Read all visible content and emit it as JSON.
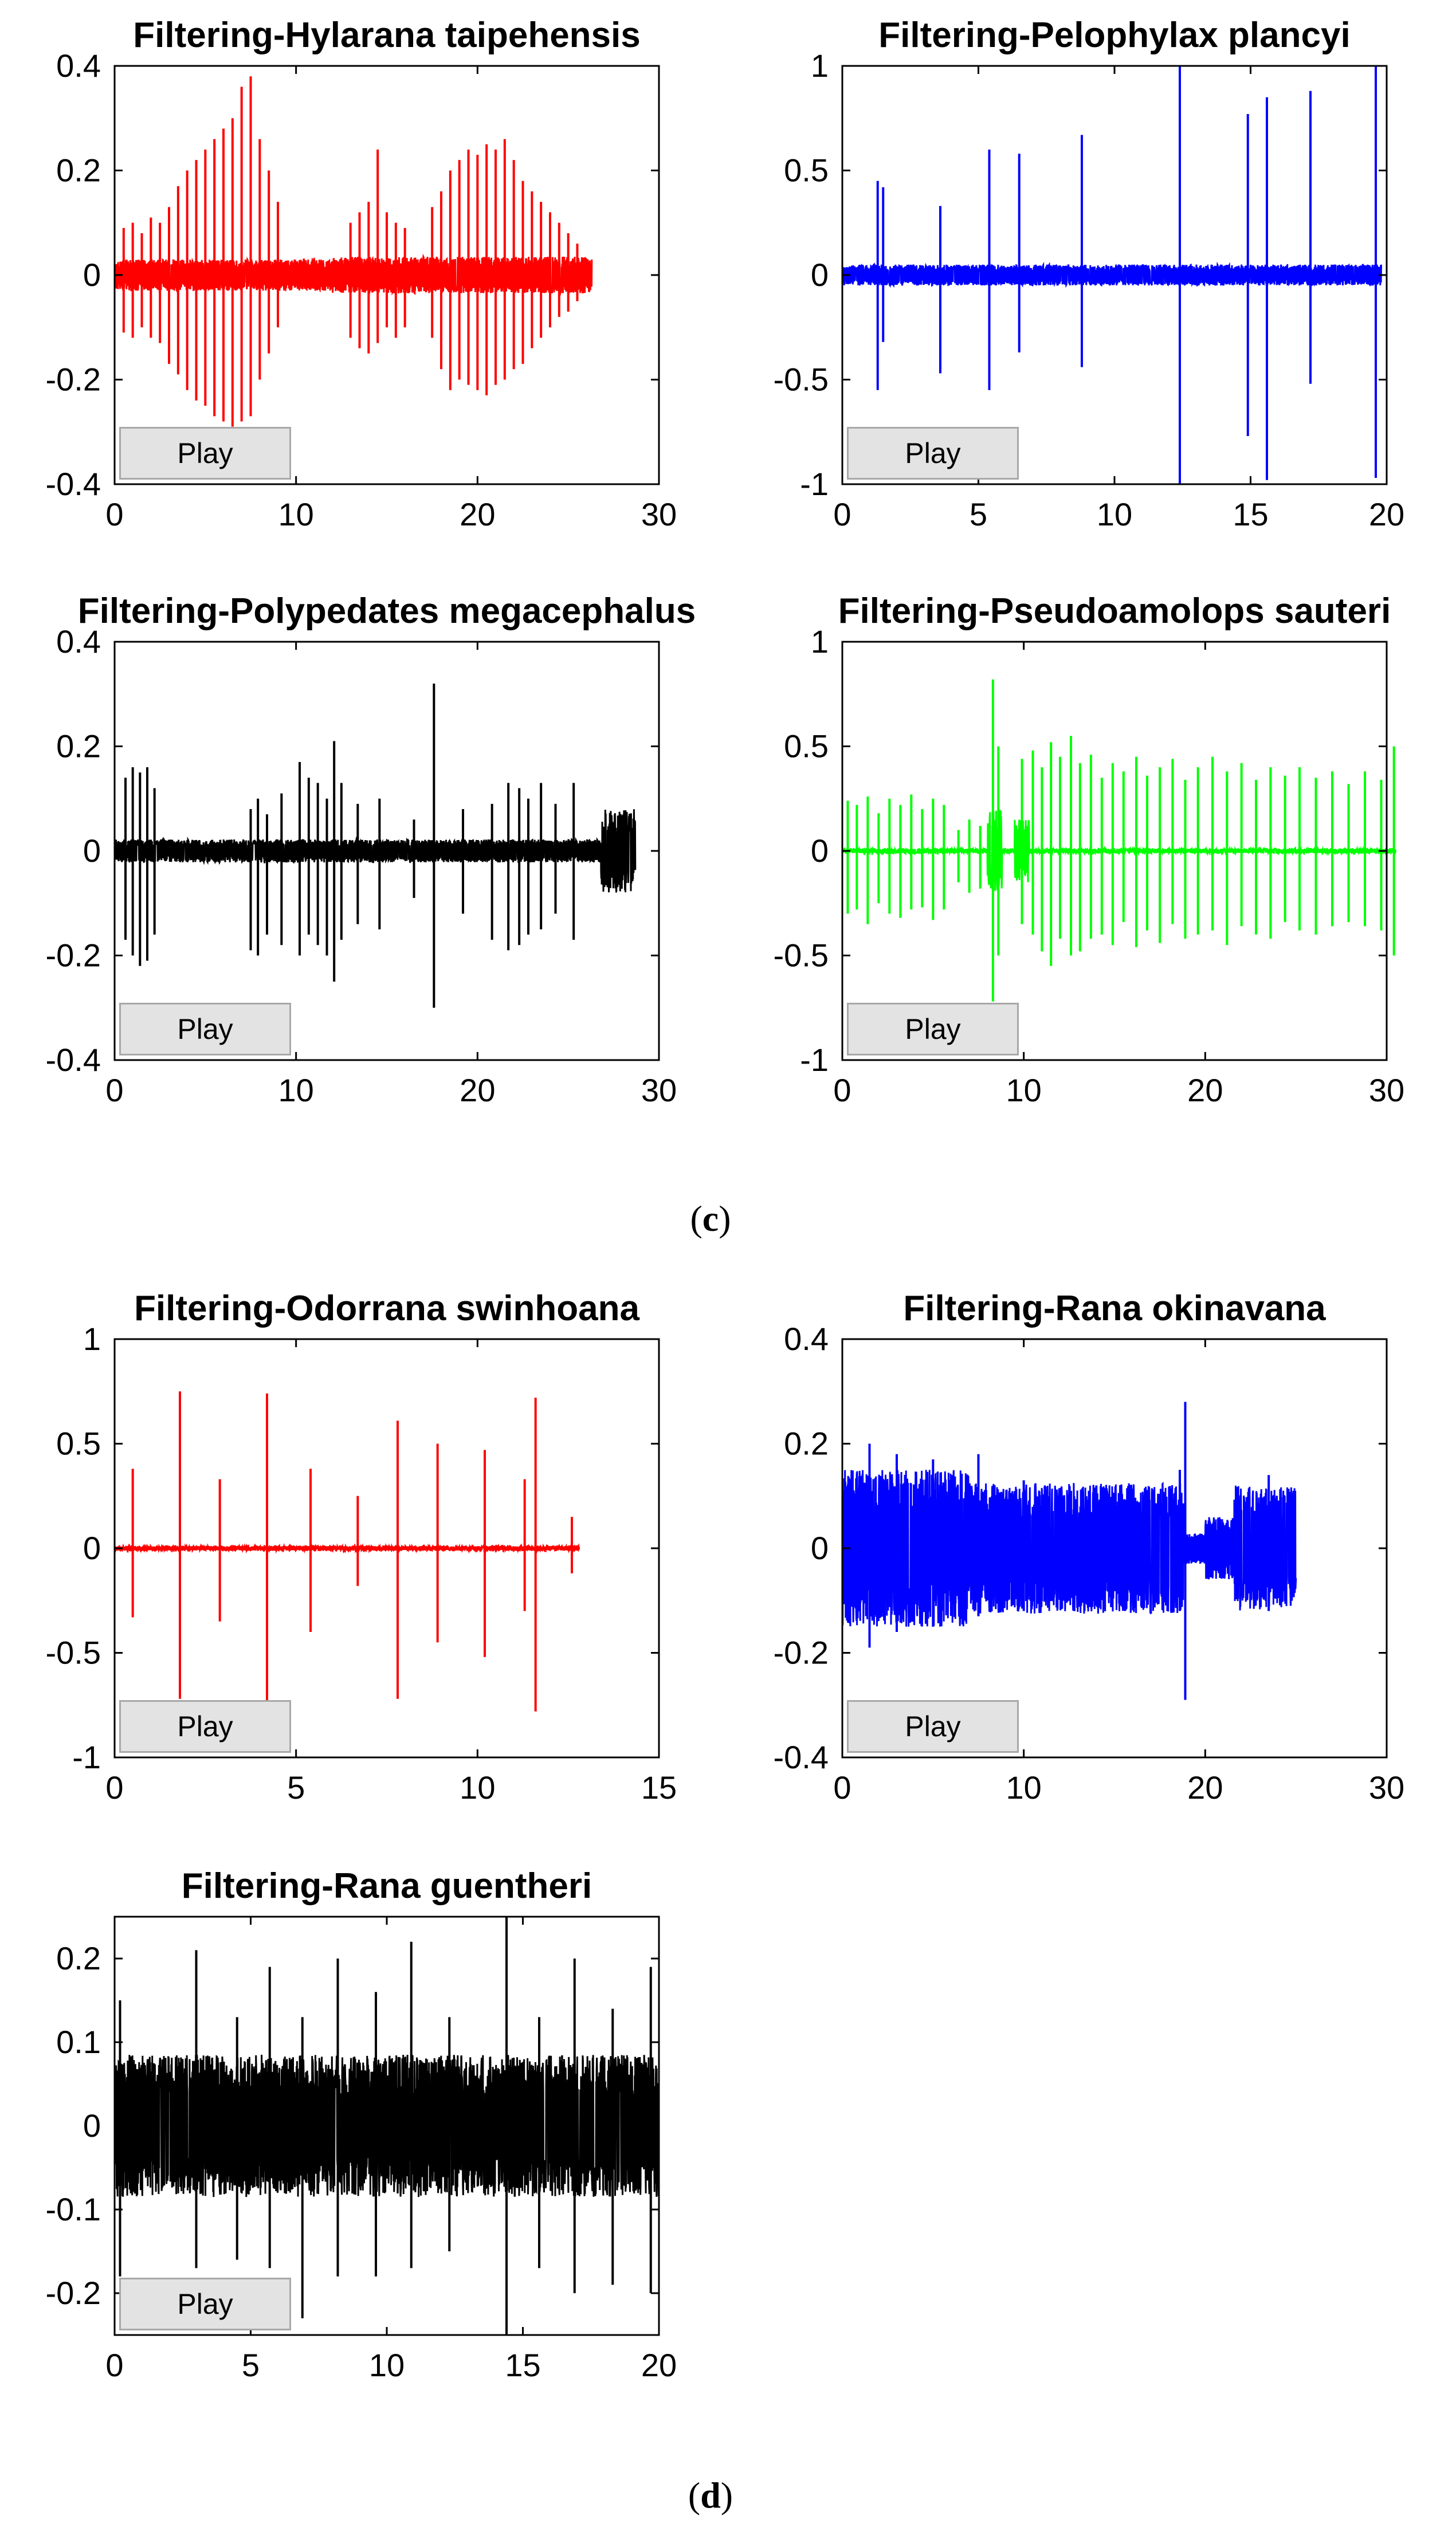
{
  "captions": {
    "c": {
      "open": "(",
      "letter": "c",
      "close": ")"
    },
    "d": {
      "open": "(",
      "letter": "d",
      "close": ")"
    }
  },
  "chart_data": [
    {
      "id": "hylarana",
      "type": "line",
      "title": "Filtering-Hylarana taipehensis",
      "color": "#ff0000",
      "xlim": [
        0,
        30
      ],
      "ylim": [
        -0.4,
        0.4
      ],
      "xticks": [
        0,
        10,
        20,
        30
      ],
      "xtick_labels": [
        "0",
        "10",
        "20",
        "30"
      ],
      "yticks": [
        -0.4,
        -0.2,
        0,
        0.2,
        0.4
      ],
      "ytick_labels": [
        "-0.4",
        "-0.2",
        "0",
        "0.2",
        "0.4"
      ],
      "duration": 26.3,
      "noise": 0.03,
      "segments": [
        [
          0,
          0.6,
          0.03
        ],
        [
          12,
          26.2,
          0.035
        ]
      ],
      "peaks": [
        [
          0.5,
          0.09,
          -0.11
        ],
        [
          1.0,
          0.1,
          -0.12
        ],
        [
          1.5,
          0.08,
          -0.1
        ],
        [
          2.0,
          0.11,
          -0.12
        ],
        [
          2.5,
          0.1,
          -0.13
        ],
        [
          3.0,
          0.13,
          -0.17
        ],
        [
          3.5,
          0.17,
          -0.19
        ],
        [
          4.0,
          0.2,
          -0.22
        ],
        [
          4.5,
          0.22,
          -0.24
        ],
        [
          5.0,
          0.24,
          -0.25
        ],
        [
          5.5,
          0.26,
          -0.27
        ],
        [
          6.0,
          0.28,
          -0.28
        ],
        [
          6.5,
          0.3,
          -0.29
        ],
        [
          7.0,
          0.36,
          -0.28
        ],
        [
          7.5,
          0.38,
          -0.27
        ],
        [
          8.0,
          0.26,
          -0.2
        ],
        [
          8.5,
          0.2,
          -0.15
        ],
        [
          9.0,
          0.14,
          -0.1
        ],
        [
          13.0,
          0.1,
          -0.12
        ],
        [
          13.5,
          0.12,
          -0.14
        ],
        [
          14.0,
          0.14,
          -0.15
        ],
        [
          14.5,
          0.24,
          -0.13
        ],
        [
          15.0,
          0.12,
          -0.1
        ],
        [
          15.5,
          0.1,
          -0.12
        ],
        [
          16.0,
          0.09,
          -0.1
        ],
        [
          17.5,
          0.13,
          -0.12
        ],
        [
          18.0,
          0.16,
          -0.18
        ],
        [
          18.5,
          0.2,
          -0.22
        ],
        [
          19.0,
          0.22,
          -0.2
        ],
        [
          19.5,
          0.24,
          -0.21
        ],
        [
          20.0,
          0.23,
          -0.22
        ],
        [
          20.5,
          0.25,
          -0.23
        ],
        [
          21.0,
          0.24,
          -0.21
        ],
        [
          21.5,
          0.26,
          -0.2
        ],
        [
          22.0,
          0.22,
          -0.18
        ],
        [
          22.5,
          0.18,
          -0.17
        ],
        [
          23.0,
          0.16,
          -0.14
        ],
        [
          23.5,
          0.14,
          -0.12
        ],
        [
          24.0,
          0.12,
          -0.1
        ],
        [
          24.5,
          0.1,
          -0.08
        ],
        [
          25.0,
          0.08,
          -0.07
        ],
        [
          25.5,
          0.06,
          -0.05
        ]
      ]
    },
    {
      "id": "pelophylax",
      "type": "line",
      "title": "Filtering-Pelophylax plancyi",
      "color": "#0000ff",
      "xlim": [
        0,
        20
      ],
      "ylim": [
        -1,
        1
      ],
      "xticks": [
        0,
        5,
        10,
        15,
        20
      ],
      "xtick_labels": [
        "0",
        "5",
        "10",
        "15",
        "20"
      ],
      "yticks": [
        -1,
        -0.5,
        0,
        0.5,
        1
      ],
      "ytick_labels": [
        "-1",
        "-0.5",
        "0",
        "0.5",
        "1"
      ],
      "duration": 19.8,
      "noise": 0.05,
      "segments": [],
      "peaks": [
        [
          1.3,
          0.45,
          -0.55
        ],
        [
          1.5,
          0.42,
          -0.32
        ],
        [
          3.6,
          0.33,
          -0.47
        ],
        [
          5.4,
          0.6,
          -0.55
        ],
        [
          6.5,
          0.58,
          -0.37
        ],
        [
          8.8,
          0.67,
          -0.44
        ],
        [
          12.4,
          1.0,
          -1.0
        ],
        [
          14.9,
          0.77,
          -0.77
        ],
        [
          15.6,
          0.85,
          -0.98
        ],
        [
          17.2,
          0.88,
          -0.52
        ],
        [
          19.6,
          1.0,
          -0.97
        ]
      ]
    },
    {
      "id": "polypedates",
      "type": "line",
      "title": "Filtering-Polypedates megacephalus",
      "color": "#000000",
      "xlim": [
        0,
        30
      ],
      "ylim": [
        -0.4,
        0.4
      ],
      "xticks": [
        0,
        10,
        20,
        30
      ],
      "xtick_labels": [
        "0",
        "10",
        "20",
        "30"
      ],
      "yticks": [
        -0.4,
        -0.2,
        0,
        0.2,
        0.4
      ],
      "ytick_labels": [
        "-0.4",
        "-0.2",
        "0",
        "0.2",
        "0.4"
      ],
      "duration": 28.7,
      "noise": 0.022,
      "segments": [
        [
          26.8,
          28.7,
          0.08
        ]
      ],
      "peaks": [
        [
          0.6,
          0.14,
          -0.17
        ],
        [
          1.0,
          0.16,
          -0.2
        ],
        [
          1.4,
          0.15,
          -0.22
        ],
        [
          1.8,
          0.16,
          -0.21
        ],
        [
          2.2,
          0.12,
          -0.16
        ],
        [
          7.5,
          0.08,
          -0.19
        ],
        [
          7.9,
          0.1,
          -0.2
        ],
        [
          8.4,
          0.07,
          -0.16
        ],
        [
          9.2,
          0.11,
          -0.18
        ],
        [
          10.2,
          0.17,
          -0.2
        ],
        [
          10.7,
          0.14,
          -0.16
        ],
        [
          11.2,
          0.13,
          -0.18
        ],
        [
          11.7,
          0.1,
          -0.2
        ],
        [
          12.1,
          0.21,
          -0.25
        ],
        [
          12.5,
          0.13,
          -0.17
        ],
        [
          13.4,
          0.09,
          -0.14
        ],
        [
          14.6,
          0.1,
          -0.15
        ],
        [
          16.5,
          0.06,
          -0.09
        ],
        [
          17.6,
          0.32,
          -0.3
        ],
        [
          19.2,
          0.08,
          -0.12
        ],
        [
          20.8,
          0.09,
          -0.17
        ],
        [
          21.7,
          0.13,
          -0.19
        ],
        [
          22.3,
          0.12,
          -0.18
        ],
        [
          22.8,
          0.1,
          -0.16
        ],
        [
          23.5,
          0.13,
          -0.15
        ],
        [
          24.3,
          0.09,
          -0.12
        ],
        [
          25.3,
          0.13,
          -0.17
        ]
      ]
    },
    {
      "id": "pseudoamolops",
      "type": "line",
      "title": "Filtering-Pseudoamolops sauteri",
      "color": "#00ff00",
      "xlim": [
        0,
        30
      ],
      "ylim": [
        -1,
        1
      ],
      "xticks": [
        0,
        10,
        20,
        30
      ],
      "xtick_labels": [
        "0",
        "10",
        "20",
        "30"
      ],
      "yticks": [
        -1,
        -0.5,
        0,
        0.5,
        1
      ],
      "ytick_labels": [
        "-1",
        "-0.5",
        "0",
        "0.5",
        "1"
      ],
      "duration": 30.5,
      "noise": 0.01,
      "segments": [
        [
          8.0,
          8.8,
          0.2
        ],
        [
          9.5,
          10.3,
          0.15
        ]
      ],
      "peaks": [
        [
          0.3,
          0.24,
          -0.3
        ],
        [
          0.8,
          0.22,
          -0.28
        ],
        [
          1.4,
          0.26,
          -0.35
        ],
        [
          2.0,
          0.18,
          -0.25
        ],
        [
          2.6,
          0.25,
          -0.3
        ],
        [
          3.2,
          0.22,
          -0.32
        ],
        [
          3.8,
          0.27,
          -0.28
        ],
        [
          4.4,
          0.2,
          -0.27
        ],
        [
          5.0,
          0.25,
          -0.33
        ],
        [
          5.6,
          0.22,
          -0.28
        ],
        [
          6.4,
          0.1,
          -0.15
        ],
        [
          7.0,
          0.15,
          -0.2
        ],
        [
          7.6,
          0.12,
          -0.18
        ],
        [
          8.3,
          0.82,
          -0.72
        ],
        [
          8.6,
          0.5,
          -0.5
        ],
        [
          9.9,
          0.44,
          -0.35
        ],
        [
          10.5,
          0.48,
          -0.4
        ],
        [
          11.0,
          0.4,
          -0.48
        ],
        [
          11.5,
          0.52,
          -0.55
        ],
        [
          12.0,
          0.45,
          -0.42
        ],
        [
          12.6,
          0.55,
          -0.5
        ],
        [
          13.1,
          0.42,
          -0.48
        ],
        [
          13.7,
          0.46,
          -0.42
        ],
        [
          14.3,
          0.35,
          -0.4
        ],
        [
          14.9,
          0.42,
          -0.45
        ],
        [
          15.5,
          0.38,
          -0.34
        ],
        [
          16.2,
          0.45,
          -0.46
        ],
        [
          16.8,
          0.36,
          -0.38
        ],
        [
          17.5,
          0.4,
          -0.44
        ],
        [
          18.2,
          0.44,
          -0.35
        ],
        [
          18.9,
          0.34,
          -0.42
        ],
        [
          19.6,
          0.4,
          -0.4
        ],
        [
          20.4,
          0.45,
          -0.38
        ],
        [
          21.2,
          0.38,
          -0.45
        ],
        [
          22.0,
          0.42,
          -0.36
        ],
        [
          22.8,
          0.34,
          -0.4
        ],
        [
          23.6,
          0.4,
          -0.42
        ],
        [
          24.4,
          0.36,
          -0.34
        ],
        [
          25.2,
          0.4,
          -0.38
        ],
        [
          26.1,
          0.35,
          -0.4
        ],
        [
          27.0,
          0.38,
          -0.36
        ],
        [
          27.9,
          0.32,
          -0.34
        ],
        [
          28.8,
          0.38,
          -0.36
        ],
        [
          29.7,
          0.34,
          -0.38
        ],
        [
          30.4,
          0.5,
          -0.5
        ]
      ]
    },
    {
      "id": "odorrana",
      "type": "line",
      "title": "Filtering-Odorrana swinhoana",
      "color": "#ff0000",
      "xlim": [
        0,
        15
      ],
      "ylim": [
        -1,
        1
      ],
      "xticks": [
        0,
        5,
        10,
        15
      ],
      "xtick_labels": [
        "0",
        "5",
        "10",
        "15"
      ],
      "yticks": [
        -1,
        -0.5,
        0,
        0.5,
        1
      ],
      "ytick_labels": [
        "-1",
        "-0.5",
        "0",
        "0.5",
        "1"
      ],
      "duration": 12.8,
      "noise": 0.01,
      "segments": [],
      "peaks": [
        [
          0.5,
          0.38,
          -0.33
        ],
        [
          1.8,
          0.75,
          -0.72
        ],
        [
          2.9,
          0.33,
          -0.35
        ],
        [
          4.2,
          0.74,
          -0.74
        ],
        [
          5.4,
          0.38,
          -0.4
        ],
        [
          6.7,
          0.25,
          -0.18
        ],
        [
          7.8,
          0.61,
          -0.72
        ],
        [
          8.9,
          0.5,
          -0.45
        ],
        [
          10.2,
          0.47,
          -0.52
        ],
        [
          11.3,
          0.33,
          -0.3
        ],
        [
          11.6,
          0.72,
          -0.78
        ],
        [
          12.6,
          0.15,
          -0.12
        ]
      ]
    },
    {
      "id": "okinavana",
      "type": "line",
      "title": "Filtering-Rana okinavana",
      "color": "#0000ff",
      "xlim": [
        0,
        30
      ],
      "ylim": [
        -0.4,
        0.4
      ],
      "xticks": [
        0,
        10,
        20,
        30
      ],
      "xtick_labels": [
        "0",
        "10",
        "20",
        "30"
      ],
      "yticks": [
        -0.4,
        -0.2,
        0,
        0.2,
        0.4
      ],
      "ytick_labels": [
        "-0.4",
        "-0.2",
        "0",
        "0.2",
        "0.4"
      ],
      "duration": 25.0,
      "noise": 0.03,
      "segments": [
        [
          0.0,
          7.0,
          0.15
        ],
        [
          7.0,
          18.8,
          0.125
        ],
        [
          20.0,
          21.6,
          0.06
        ],
        [
          21.6,
          25.0,
          0.12
        ]
      ],
      "peaks": [
        [
          1.5,
          0.2,
          -0.19
        ],
        [
          3.0,
          0.18,
          -0.16
        ],
        [
          5.0,
          0.17,
          -0.15
        ],
        [
          7.5,
          0.18,
          -0.13
        ],
        [
          10.0,
          0.13,
          -0.12
        ],
        [
          14.0,
          0.12,
          -0.11
        ],
        [
          18.6,
          0.15,
          -0.12
        ],
        [
          18.9,
          0.28,
          -0.29
        ],
        [
          23.5,
          0.14,
          -0.12
        ]
      ]
    },
    {
      "id": "guentheri",
      "type": "line",
      "title": "Filtering-Rana guentheri",
      "color": "#000000",
      "xlim": [
        0,
        20
      ],
      "ylim": [
        -0.25,
        0.25
      ],
      "xticks": [
        0,
        5,
        10,
        15,
        20
      ],
      "xtick_labels": [
        "0",
        "5",
        "10",
        "15",
        "20"
      ],
      "yticks": [
        -0.2,
        -0.1,
        0,
        0.1,
        0.2
      ],
      "ytick_labels": [
        "-0.2",
        "-0.1",
        "0",
        "0.1",
        "0.2"
      ],
      "duration": 20.0,
      "noise": 0.03,
      "segments": [
        [
          0.0,
          20.0,
          0.085
        ]
      ],
      "peaks": [
        [
          0.2,
          0.15,
          -0.18
        ],
        [
          3.0,
          0.21,
          -0.17
        ],
        [
          4.5,
          0.13,
          -0.16
        ],
        [
          5.7,
          0.19,
          -0.17
        ],
        [
          6.9,
          0.13,
          -0.23
        ],
        [
          8.2,
          0.2,
          -0.18
        ],
        [
          9.6,
          0.16,
          -0.18
        ],
        [
          10.9,
          0.22,
          -0.17
        ],
        [
          12.3,
          0.13,
          -0.15
        ],
        [
          14.4,
          0.25,
          -0.25
        ],
        [
          15.6,
          0.13,
          -0.17
        ],
        [
          16.9,
          0.2,
          -0.2
        ],
        [
          18.3,
          0.14,
          -0.19
        ],
        [
          19.7,
          0.19,
          -0.2
        ]
      ]
    }
  ],
  "play_label": "Play"
}
